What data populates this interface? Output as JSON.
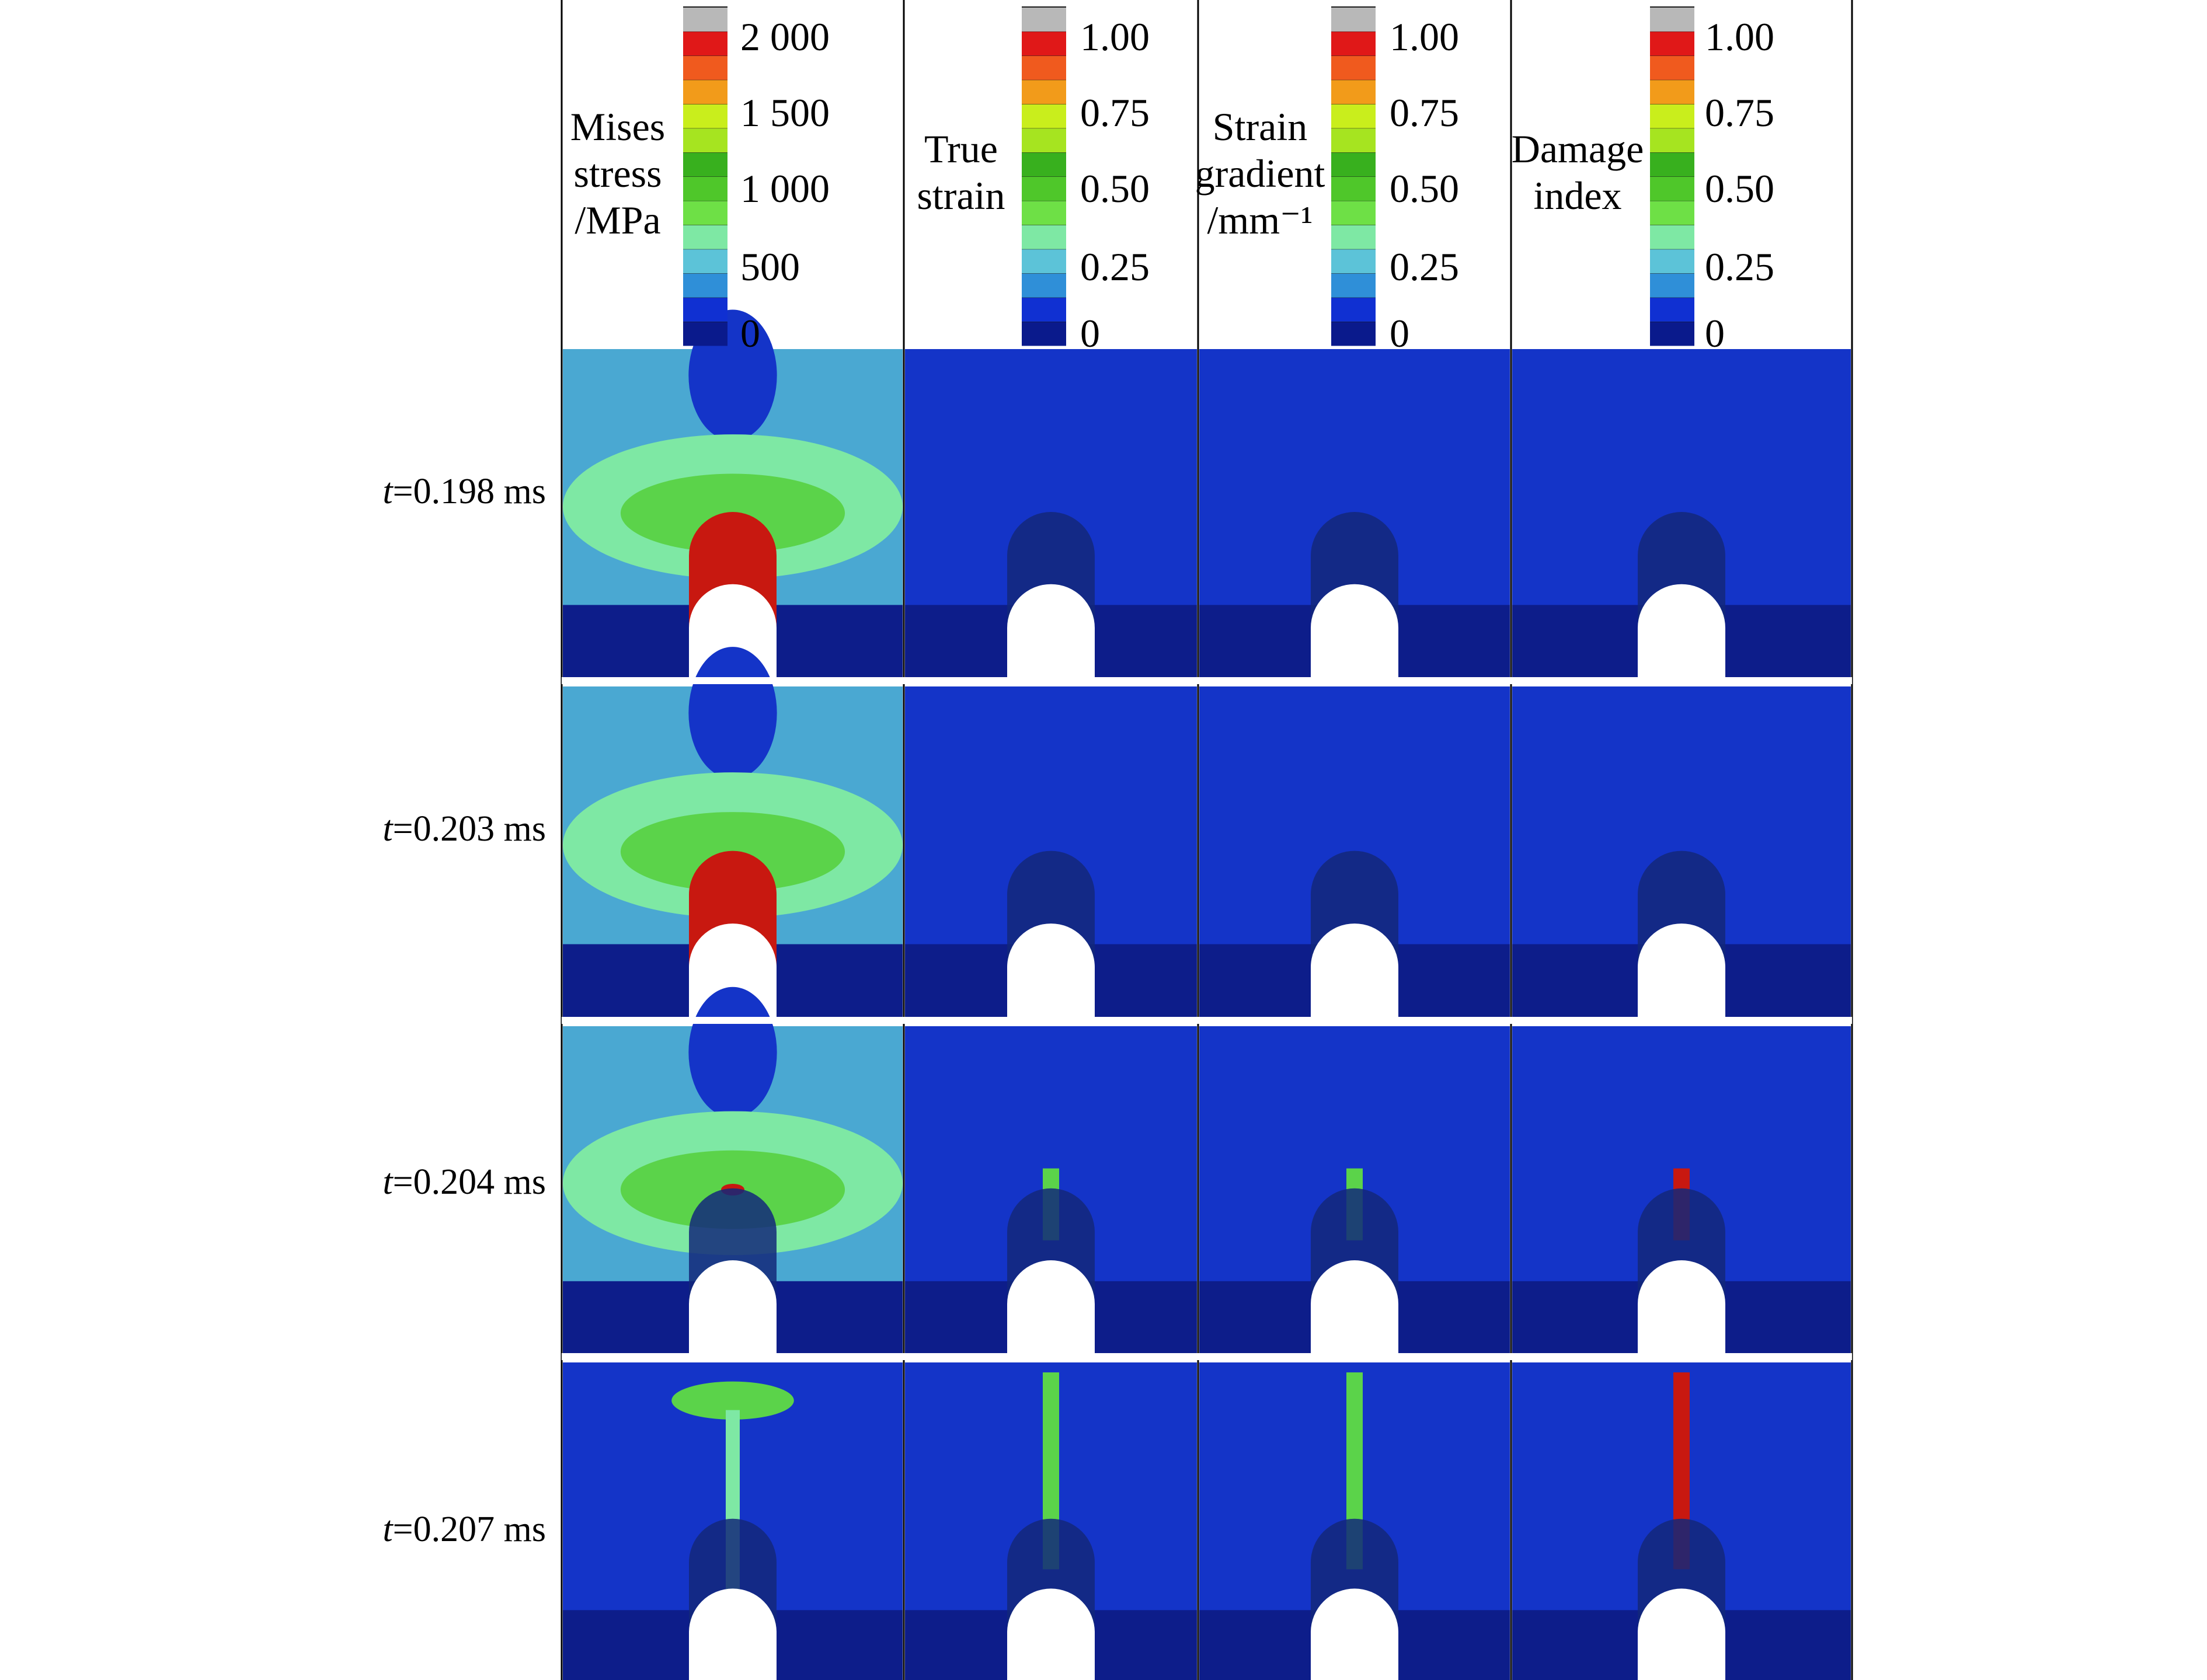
{
  "figure": {
    "columns": [
      {
        "title_lines": [
          "Mises",
          "stress",
          "/MPa"
        ],
        "ticks": [
          "2 000",
          "1 500",
          "1 000",
          "500",
          "0"
        ]
      },
      {
        "title_lines": [
          "True",
          "strain"
        ],
        "ticks": [
          "1.00",
          "0.75",
          "0.50",
          "0.25",
          "0"
        ]
      },
      {
        "title_lines": [
          "Strain",
          "gradient",
          "/mm⁻¹"
        ],
        "ticks": [
          "1.00",
          "0.75",
          "0.50",
          "0.25",
          "0"
        ]
      },
      {
        "title_lines": [
          "Damage",
          "index"
        ],
        "ticks": [
          "1.00",
          "0.75",
          "0.50",
          "0.25",
          "0"
        ]
      }
    ],
    "rows": [
      {
        "label_italic": "t",
        "label_rest": "=0.198 ms"
      },
      {
        "label_italic": "t",
        "label_rest": "=0.203 ms"
      },
      {
        "label_italic": "t",
        "label_rest": "=0.204 ms"
      },
      {
        "label_italic": "t",
        "label_rest": "=0.207 ms"
      }
    ],
    "colormap": [
      "#0a1a8c",
      "#1030d2",
      "#2f8fd8",
      "#5cc3d8",
      "#7ee8a4",
      "#6ee046",
      "#4fc72a",
      "#38b01e",
      "#a6e420",
      "#c9ee1c",
      "#f29b1a",
      "#f05a1e",
      "#e01818",
      "#b8b8b8"
    ],
    "colors": {
      "background_dark": "#0d1d8a",
      "background_mid": "#1434c8",
      "band_light": "#4aa8d2",
      "band_green_outer": "#7ee8a4",
      "band_green_inner": "#5bd34a",
      "hot_red": "#c81810",
      "frame": "#000000"
    }
  }
}
